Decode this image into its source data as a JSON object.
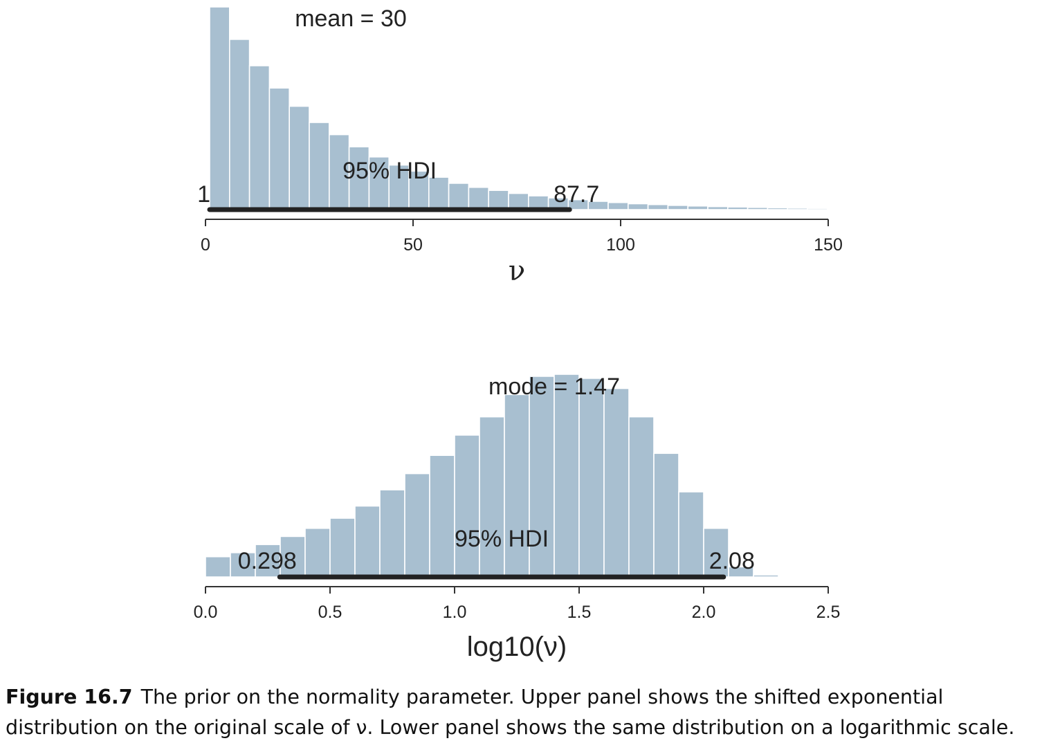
{
  "colors": {
    "bar": "#a8bfd0",
    "bar_edge": "#ffffff",
    "hdi": "#222222",
    "axis": "#333333"
  },
  "chart_data": [
    {
      "type": "bar",
      "xlabel": "ν",
      "xlim": [
        0,
        150
      ],
      "xticks": [
        "0",
        "50",
        "100",
        "150"
      ],
      "xtick_values": [
        0,
        50,
        100,
        150
      ],
      "bin_start": 1,
      "bin_width": 4.8,
      "values": [
        1.0,
        0.84,
        0.71,
        0.6,
        0.51,
        0.43,
        0.37,
        0.31,
        0.26,
        0.22,
        0.19,
        0.16,
        0.13,
        0.11,
        0.095,
        0.08,
        0.068,
        0.058,
        0.049,
        0.041,
        0.035,
        0.029,
        0.025,
        0.021,
        0.018,
        0.015,
        0.013,
        0.011,
        0.009,
        0.0075,
        0.0063,
        0.0053
      ],
      "annotation": "mean = 30",
      "hdi_label": "95% HDI",
      "hdi_low": 1,
      "hdi_high": 87.7,
      "hdi_low_label": "1",
      "hdi_high_label": "87.7"
    },
    {
      "type": "bar",
      "xlabel": "log10(ν)",
      "xlim": [
        0,
        2.5
      ],
      "xticks": [
        "0.0",
        "0.5",
        "1.0",
        "1.5",
        "2.0",
        "2.5"
      ],
      "xtick_values": [
        0,
        0.5,
        1.0,
        1.5,
        2.0,
        2.5
      ],
      "bin_start": 0,
      "bin_width": 0.1,
      "values": [
        0.1,
        0.12,
        0.16,
        0.2,
        0.24,
        0.29,
        0.35,
        0.43,
        0.51,
        0.6,
        0.7,
        0.79,
        0.9,
        0.99,
        1.0,
        0.98,
        0.93,
        0.79,
        0.61,
        0.42,
        0.24,
        0.05,
        0.01
      ],
      "annotation": "mode = 1.47",
      "hdi_label": "95% HDI",
      "hdi_low": 0.298,
      "hdi_high": 2.08,
      "hdi_low_label": "0.298",
      "hdi_high_label": "2.08"
    }
  ],
  "caption": {
    "figure_number": "Figure 16.7",
    "text": "The prior on the normality parameter. Upper panel shows the shifted exponential distribution on the original scale of ν. Lower panel shows the same distribution on a logarithmic scale."
  }
}
